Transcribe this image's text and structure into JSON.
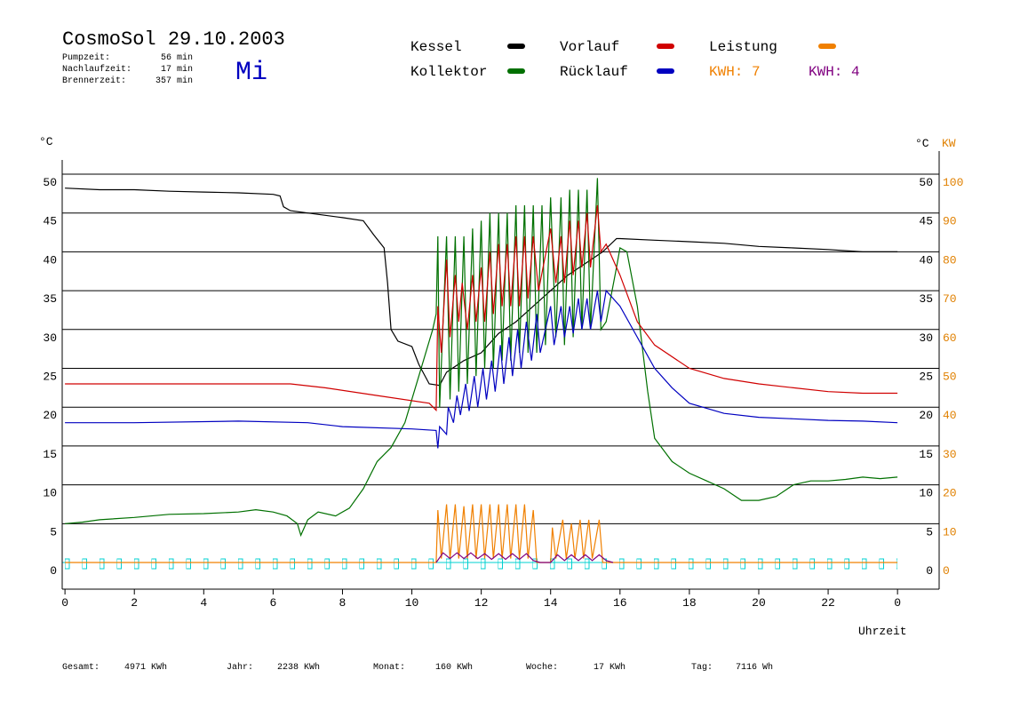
{
  "title": "CosmoSol 29.10.2003",
  "day": "Mi",
  "stats": [
    {
      "label": "Pumpzeit:",
      "value": "56 min"
    },
    {
      "label": "Nachlaufzeit:",
      "value": "17 min"
    },
    {
      "label": "Brennerzeit:",
      "value": "357 min"
    }
  ],
  "footer": [
    {
      "label": "Gesamt:",
      "value": "4971 KWh"
    },
    {
      "label": "Jahr:",
      "value": "2238 KWh"
    },
    {
      "label": "Monat:",
      "value": "160 KWh"
    },
    {
      "label": "Woche:",
      "value": "17 KWh"
    },
    {
      "label": "Tag:",
      "value": "7116 Wh"
    }
  ],
  "chart_data": {
    "type": "line",
    "y_label": "°C",
    "y2_label": "KW",
    "x_label": "Uhrzeit",
    "xlim": [
      -0.08,
      25.2
    ],
    "xticks": [
      0,
      2,
      4,
      6,
      8,
      10,
      12,
      14,
      16,
      18,
      20,
      22,
      {
        "value": 24,
        "label": "0"
      }
    ],
    "ylim": [
      -3.43,
      51.83
    ],
    "yticks": [
      0,
      5,
      10,
      15,
      20,
      25,
      30,
      35,
      40,
      45,
      50
    ],
    "y2lim": [
      -6.86,
      103.66
    ],
    "y2ticks": [
      0,
      10,
      20,
      30,
      40,
      50,
      60,
      70,
      80,
      90,
      100
    ],
    "grid": true,
    "energy_labels": [
      {
        "text": "KWH: 7",
        "color": "#f08000"
      },
      {
        "text": "KWH: 4",
        "color": "#800080"
      }
    ],
    "series": [
      {
        "name": "Kessel",
        "color": "#000000",
        "x": [
          0,
          1,
          2,
          3,
          4,
          5,
          6,
          6.2,
          6.3,
          6.5,
          7,
          8,
          8.6,
          8.9,
          9.2,
          9.3,
          9.4,
          9.6,
          10,
          10.2,
          10.5,
          10.8,
          11,
          11.5,
          12,
          12.5,
          13,
          13.5,
          14,
          14.5,
          15,
          15.5,
          15.9,
          16,
          17,
          18,
          19,
          20,
          21,
          22,
          23,
          24
        ],
        "values": [
          48.2,
          48,
          48,
          47.8,
          47.7,
          47.6,
          47.4,
          47.2,
          45.8,
          45.3,
          45,
          44.4,
          44,
          42.2,
          40.5,
          36,
          30,
          28.5,
          27.8,
          25.5,
          23,
          22.8,
          24.5,
          26,
          27,
          29.5,
          31,
          33,
          35,
          37,
          38.5,
          40,
          41.7,
          41.7,
          41.5,
          41.3,
          41.1,
          40.7,
          40.5,
          40.3,
          40,
          40
        ]
      },
      {
        "name": "Kollektor",
        "color": "#007000",
        "x": [
          0,
          0.5,
          1,
          2,
          3,
          4,
          5,
          5.5,
          6,
          6.4,
          6.7,
          6.8,
          7,
          7.3,
          7.8,
          8.2,
          8.6,
          9,
          9.4,
          9.8,
          10.2,
          10.6,
          10.7,
          10.75,
          10.8,
          11,
          11.1,
          11.25,
          11.35,
          11.5,
          11.6,
          11.75,
          11.85,
          12,
          12.1,
          12.25,
          12.35,
          12.5,
          12.6,
          12.75,
          12.85,
          13,
          13.1,
          13.25,
          13.35,
          13.5,
          13.6,
          13.75,
          13.85,
          14,
          14.15,
          14.3,
          14.4,
          14.55,
          14.65,
          14.8,
          14.9,
          15.05,
          15.15,
          15.35,
          15.45,
          15.6,
          15.9,
          16,
          16.2,
          16.5,
          16.8,
          17,
          17.5,
          18,
          18.5,
          19,
          19.5,
          20,
          20.5,
          21,
          21.5,
          22,
          22.5,
          23,
          23.5,
          24
        ],
        "values": [
          5,
          5.2,
          5.5,
          5.8,
          6.2,
          6.3,
          6.5,
          6.8,
          6.5,
          6,
          5,
          3.5,
          5.5,
          6.5,
          6,
          7,
          9.5,
          13,
          14.8,
          18,
          24,
          30,
          32,
          42,
          20,
          42,
          21,
          42,
          22,
          42,
          23,
          43,
          24,
          44,
          25,
          45,
          25,
          45,
          26,
          45,
          26,
          46,
          27,
          46,
          27,
          46,
          27,
          46,
          28,
          47,
          29,
          47,
          28,
          48,
          29,
          48,
          30,
          48,
          30,
          49.5,
          30,
          31,
          38,
          40.5,
          40,
          33,
          22,
          16,
          13,
          11.5,
          10.5,
          9.5,
          8,
          8,
          8.5,
          10,
          10.5,
          10.5,
          10.7,
          11,
          10.8,
          11
        ]
      },
      {
        "name": "Vorlauf",
        "color": "#d00000",
        "x": [
          0,
          3,
          6.5,
          7.5,
          9,
          10.5,
          10.7,
          10.75,
          10.85,
          11,
          11.1,
          11.25,
          11.35,
          11.45,
          11.6,
          11.75,
          11.85,
          12,
          12.1,
          12.25,
          12.35,
          12.5,
          12.6,
          12.75,
          12.85,
          13,
          13.1,
          13.25,
          13.35,
          13.5,
          13.65,
          14,
          14.15,
          14.3,
          14.4,
          14.55,
          14.65,
          14.8,
          14.9,
          15.05,
          15.15,
          15.35,
          15.45,
          15.6,
          16,
          16.5,
          17,
          18,
          19,
          20,
          21,
          22,
          23,
          24
        ],
        "values": [
          23,
          23,
          23,
          22.5,
          21.5,
          20.5,
          19.6,
          33,
          27,
          39,
          29,
          37,
          31,
          36,
          30,
          37,
          31,
          38,
          31,
          40,
          32,
          41,
          33,
          41,
          33,
          42,
          33,
          42,
          34,
          42,
          35,
          43,
          36,
          42,
          36,
          44,
          37,
          44,
          38,
          45,
          38,
          46,
          40,
          41,
          37,
          31,
          28,
          25,
          23.7,
          23,
          22.5,
          22,
          21.8,
          21.8
        ]
      },
      {
        "name": "Rücklauf",
        "color": "#0000c0",
        "x": [
          0,
          2,
          5,
          7,
          8,
          10,
          10.7,
          10.75,
          10.8,
          11,
          11.05,
          11.2,
          11.3,
          11.4,
          11.55,
          11.65,
          11.8,
          11.9,
          12.05,
          12.15,
          12.3,
          12.4,
          12.55,
          12.65,
          12.8,
          12.9,
          13.05,
          13.15,
          13.3,
          13.45,
          13.6,
          13.7,
          14,
          14.1,
          14.3,
          14.4,
          14.55,
          14.65,
          14.8,
          14.9,
          15.05,
          15.15,
          15.35,
          15.45,
          15.6,
          16,
          16.5,
          17,
          17.5,
          18,
          19,
          20,
          21,
          22,
          23,
          24
        ],
        "values": [
          18,
          18,
          18.2,
          18,
          17.5,
          17.2,
          17,
          14.7,
          17.5,
          16.5,
          20,
          18,
          21.5,
          19,
          23,
          19.5,
          24,
          20,
          25,
          21,
          26,
          22,
          28,
          23,
          29,
          24,
          30,
          25,
          31,
          26,
          32,
          27,
          33,
          28,
          33,
          29,
          33,
          29.5,
          34,
          30,
          34,
          30,
          35,
          31,
          35,
          33,
          29,
          25,
          22.5,
          20.5,
          19.2,
          18.7,
          18.5,
          18.3,
          18.2,
          18
        ]
      },
      {
        "name": "Leistung",
        "color": "#f08000",
        "axis": "y2",
        "x": [
          0,
          10.7,
          10.75,
          10.85,
          11,
          11.1,
          11.25,
          11.35,
          11.5,
          11.6,
          11.75,
          11.85,
          12,
          12.1,
          12.25,
          12.35,
          12.5,
          12.6,
          12.75,
          12.85,
          13,
          13.1,
          13.25,
          13.35,
          13.5,
          13.6,
          14,
          14.05,
          14.15,
          14.35,
          14.45,
          14.6,
          14.7,
          14.85,
          14.95,
          15.1,
          15.2,
          15.4,
          15.5,
          24
        ],
        "values": [
          0,
          0,
          13.5,
          1,
          15,
          1,
          15,
          1,
          14.5,
          1,
          15,
          1,
          15,
          1,
          15,
          1,
          15,
          1,
          15,
          1,
          15,
          1,
          15,
          1,
          13.5,
          0,
          0,
          9,
          1,
          11,
          1,
          10,
          1,
          11,
          1,
          11,
          1,
          11,
          0,
          0
        ]
      },
      {
        "color": "#800080",
        "axis": "y2",
        "x": [
          10.7,
          10.9,
          11.1,
          11.3,
          11.5,
          11.7,
          11.9,
          12.1,
          12.3,
          12.5,
          12.7,
          12.9,
          13.1,
          13.3,
          13.5,
          13.7,
          14,
          14.2,
          14.4,
          14.6,
          14.8,
          15,
          15.2,
          15.4,
          15.6,
          15.8
        ],
        "values": [
          0,
          2.5,
          1,
          2.5,
          1,
          2.5,
          1,
          2.3,
          0.8,
          2.3,
          0.8,
          2.3,
          0.8,
          2.3,
          0.5,
          0,
          0,
          2,
          0.5,
          2,
          0.5,
          2,
          0.5,
          2,
          0.5,
          0
        ]
      }
    ]
  }
}
